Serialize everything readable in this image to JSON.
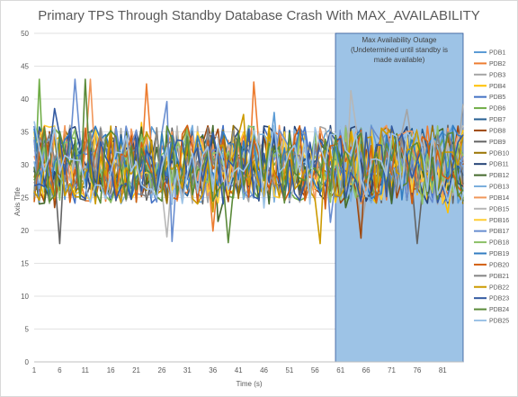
{
  "chart_data": {
    "type": "line",
    "title": "Primary TPS Through Standby Database Crash With MAX_AVAILABILITY",
    "xlabel": "Time (s)",
    "ylabel": "Axis Title",
    "ylim": [
      0,
      50
    ],
    "yticks": [
      0,
      5,
      10,
      15,
      20,
      25,
      30,
      35,
      40,
      45,
      50
    ],
    "xlim": [
      1,
      85
    ],
    "xticks": [
      1,
      6,
      11,
      16,
      21,
      26,
      31,
      36,
      41,
      46,
      51,
      56,
      61,
      66,
      71,
      76,
      81
    ],
    "grid": "horizontal",
    "legend_position": "right",
    "annotation": {
      "lines": [
        "Max Availability Outage",
        "(Undetermined until standby is",
        "made available)"
      ],
      "x_start": 60,
      "x_end": 85,
      "color": "#9dc3e6"
    },
    "series_note": "Each series fluctuates approximately between 23 and 37 TPS with occasional spikes; shown values are representative estimates.",
    "series": [
      {
        "name": "PDB1",
        "color": "#5b9bd5"
      },
      {
        "name": "PDB2",
        "color": "#ed7d31"
      },
      {
        "name": "PDB3",
        "color": "#a5a5a5"
      },
      {
        "name": "PDB4",
        "color": "#ffc000"
      },
      {
        "name": "PDB5",
        "color": "#4472c4"
      },
      {
        "name": "PDB6",
        "color": "#70ad47"
      },
      {
        "name": "PDB7",
        "color": "#255e91"
      },
      {
        "name": "PDB8",
        "color": "#9e480e"
      },
      {
        "name": "PDB9",
        "color": "#636363"
      },
      {
        "name": "PDB10",
        "color": "#997300"
      },
      {
        "name": "PDB11",
        "color": "#264478"
      },
      {
        "name": "PDB12",
        "color": "#43682b"
      },
      {
        "name": "PDB13",
        "color": "#7cafdd"
      },
      {
        "name": "PDB14",
        "color": "#f1975a"
      },
      {
        "name": "PDB15",
        "color": "#b7b7b7"
      },
      {
        "name": "PDB16",
        "color": "#ffcd33"
      },
      {
        "name": "PDB17",
        "color": "#698ed0"
      },
      {
        "name": "PDB18",
        "color": "#8cc168"
      },
      {
        "name": "PDB19",
        "color": "#327dc2"
      },
      {
        "name": "PDB20",
        "color": "#d26012"
      },
      {
        "name": "PDB21",
        "color": "#848484"
      },
      {
        "name": "PDB22",
        "color": "#cc9a00"
      },
      {
        "name": "PDB23",
        "color": "#335aa1"
      },
      {
        "name": "PDB24",
        "color": "#5a8a39"
      },
      {
        "name": "PDB25",
        "color": "#9dc3e6"
      }
    ]
  }
}
